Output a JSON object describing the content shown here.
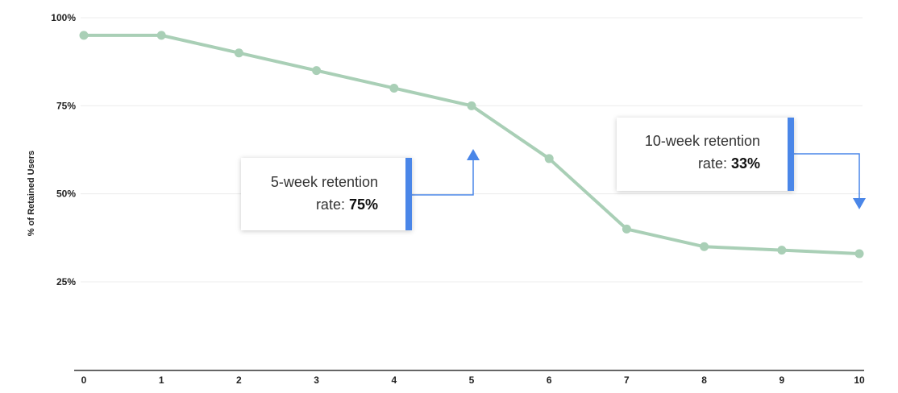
{
  "chart_data": {
    "type": "line",
    "x": [
      0,
      1,
      2,
      3,
      4,
      5,
      6,
      7,
      8,
      9,
      10
    ],
    "series": [
      {
        "values": [
          95,
          95,
          90,
          85,
          80,
          75,
          60,
          40,
          35,
          34,
          33
        ]
      }
    ],
    "x_ticks": [
      "0",
      "1",
      "2",
      "3",
      "4",
      "5",
      "6",
      "7",
      "8",
      "9",
      "10"
    ],
    "y_ticks": [
      {
        "value": 100,
        "label": "100%"
      },
      {
        "value": 75,
        "label": "75%"
      },
      {
        "value": 50,
        "label": "50%"
      },
      {
        "value": 25,
        "label": "25%"
      }
    ],
    "ylabel": "% of Retained Users",
    "xlim": [
      0,
      10
    ],
    "ylim": [
      0,
      100
    ],
    "grid": true,
    "colors": {
      "line": "#a9cfb6",
      "grid": "#ececec",
      "axis": "#333333",
      "accent": "#4a86e8"
    }
  },
  "annotations": [
    {
      "text": "5-week retention",
      "prefix": "rate: ",
      "value": "75%"
    },
    {
      "text": "10-week retention",
      "prefix": "rate: ",
      "value": "33%"
    }
  ]
}
